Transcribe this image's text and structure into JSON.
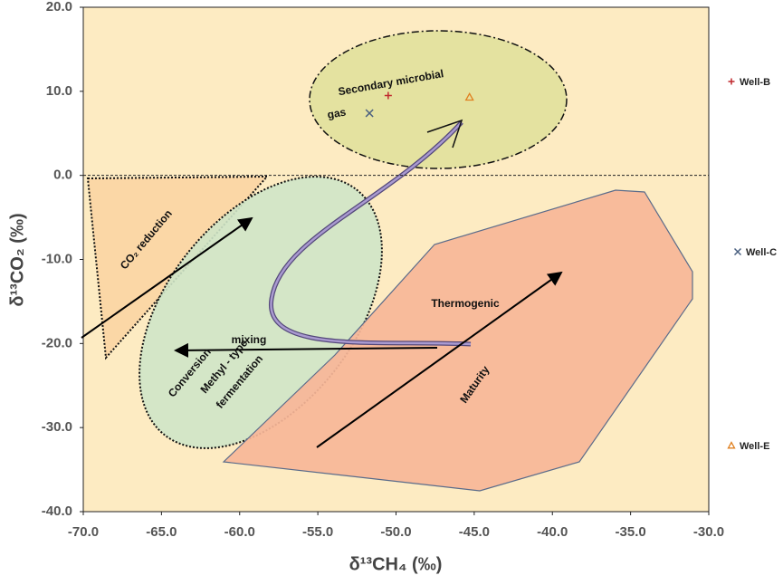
{
  "chart_data": {
    "type": "scatter",
    "x_label": "δ¹³CH₄ (‰)",
    "y_label": "δ¹³CO₂ (‰)",
    "xlim": [
      -70,
      -30
    ],
    "ylim": [
      -40,
      20
    ],
    "xticks": [
      {
        "value": -70,
        "label": "-70.0"
      },
      {
        "value": -65,
        "label": "-65.0"
      },
      {
        "value": -60,
        "label": "-60.0"
      },
      {
        "value": -55,
        "label": "-55.0"
      },
      {
        "value": -50,
        "label": "-50.0"
      },
      {
        "value": -45,
        "label": "-45.0"
      },
      {
        "value": -40,
        "label": "-40.0"
      },
      {
        "value": -35,
        "label": "-35.0"
      },
      {
        "value": -30,
        "label": "-30.0"
      }
    ],
    "yticks": [
      {
        "value": -40,
        "label": "-40.0"
      },
      {
        "value": -30,
        "label": "-30.0"
      },
      {
        "value": -20,
        "label": "-20.0"
      },
      {
        "value": -10,
        "label": "-10.0"
      },
      {
        "value": 0,
        "label": "0.0"
      },
      {
        "value": 10,
        "label": "10.0"
      },
      {
        "value": 20,
        "label": "20.0"
      }
    ],
    "hline": 0,
    "grid": false,
    "series": [
      {
        "name": "Well-B",
        "color": "#c0282d",
        "marker": "plus",
        "x": [
          -50.5
        ],
        "y": [
          9.5
        ]
      },
      {
        "name": "Well-C",
        "color": "#4a6080",
        "marker": "cross",
        "x": [
          -51.7
        ],
        "y": [
          7.4
        ]
      },
      {
        "name": "Well-E",
        "color": "#e08020",
        "marker": "triangle",
        "x": [
          -45.3
        ],
        "y": [
          9.3
        ]
      }
    ],
    "annotations": {
      "secondary": [
        "Secondary microbial",
        "gas"
      ],
      "co2_reduction": "CO₂ reduction",
      "conversion": "Conversion",
      "methyl": [
        "Methyl - type",
        "fermentation"
      ],
      "mixing": "mixing",
      "thermogenic": "Thermogenic",
      "maturity": "Maturity"
    }
  }
}
